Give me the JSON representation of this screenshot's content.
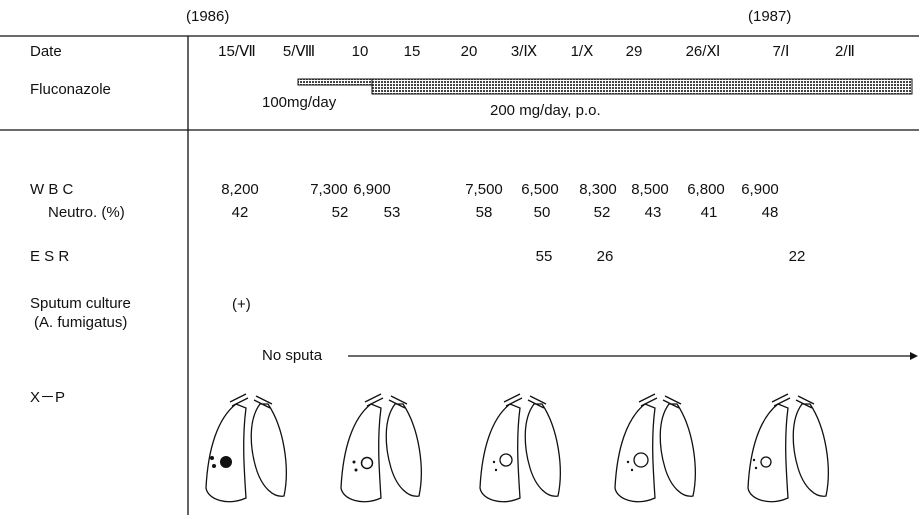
{
  "header": {
    "years": [
      "(1986)",
      "(1987)"
    ]
  },
  "rows": {
    "date": {
      "label": "Date",
      "values": [
        "15/Ⅶ",
        "5/Ⅷ",
        "10",
        "15",
        "20",
        "3/Ⅸ",
        "1/Ⅹ",
        "29",
        "26/Ⅺ",
        "7/Ⅰ",
        "2/Ⅱ"
      ]
    },
    "fluconazole": {
      "label": "Fluconazole",
      "doses": [
        "100mg/day",
        "200 mg/day, p.o."
      ]
    },
    "wbc": {
      "label": "W B C",
      "values": [
        "8,200",
        "7,300",
        "6,900",
        "7,500",
        "6,500",
        "8,300",
        "8,500",
        "6,800",
        "6,900"
      ]
    },
    "neutro": {
      "label": "Neutro. (%)",
      "values": [
        "42",
        "52",
        "53",
        "58",
        "50",
        "52",
        "43",
        "41",
        "48"
      ]
    },
    "esr": {
      "label": "E S R",
      "values": [
        "55",
        "26",
        "22"
      ]
    },
    "sputum": {
      "label": [
        "Sputum culture",
        "(A. fumigatus)"
      ],
      "result": "(+)",
      "note": "No sputa"
    },
    "xp": {
      "label": "X－P"
    }
  }
}
